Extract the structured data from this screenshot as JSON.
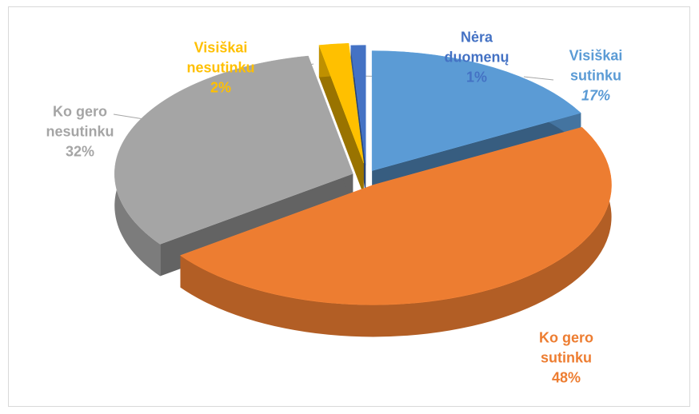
{
  "chart_data": {
    "type": "pie",
    "categories": [
      "Visiškai sutinku",
      "Ko gero sutinku",
      "Ko gero nesutinku",
      "Visiškai nesutinku",
      "Nėra duomenų"
    ],
    "values": [
      17,
      48,
      32,
      2,
      1
    ],
    "value_labels": [
      "17%",
      "48%",
      "32%",
      "2%",
      "1%"
    ],
    "colors": [
      "#5b9bd5",
      "#ed7d31",
      "#a5a5a5",
      "#ffc000",
      "#4472c4"
    ]
  }
}
